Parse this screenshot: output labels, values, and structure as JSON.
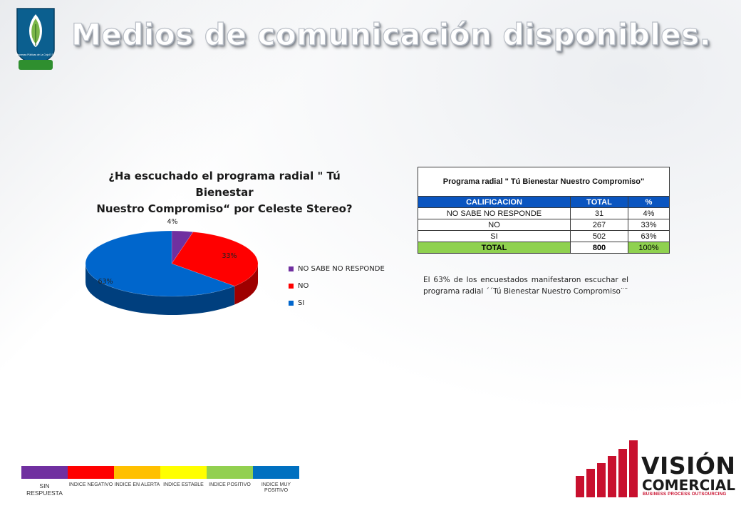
{
  "slide": {
    "title": "Medios de comunicación disponibles."
  },
  "chart_data": {
    "type": "pie",
    "title_line1": "¿Ha escuchado el programa radial \" Tú Bienestar",
    "title_line2": "Nuestro Compromiso“ por Celeste Stereo?",
    "categories": [
      "NO SABE NO RESPONDE",
      "NO",
      "SI"
    ],
    "values": [
      4,
      33,
      63
    ],
    "labels": [
      "4%",
      "33%",
      "63%"
    ],
    "colors": [
      "#7030a0",
      "#ff0000",
      "#0066cc"
    ],
    "legend_position": "right"
  },
  "table": {
    "title": "Programa radial \" Tú Bienestar Nuestro Compromiso\"",
    "headers": [
      "CALIFICACION",
      "TOTAL",
      "%"
    ],
    "rows": [
      [
        "NO SABE NO RESPONDE",
        "31",
        "4%"
      ],
      [
        "NO",
        "267",
        "33%"
      ],
      [
        "SI",
        "502",
        "63%"
      ]
    ],
    "total": [
      "TOTAL",
      "800",
      "100%"
    ]
  },
  "note": "El 63% de los encuestados manifestaron escuchar el programa radial ´´Tú Bienestar Nuestro Compromiso¨¨",
  "scale": [
    {
      "label": "SIN RESPUESTA",
      "color": "#7030a0"
    },
    {
      "label": "INDICE NEGATIVO",
      "color": "#ff0000"
    },
    {
      "label": "INDICE EN ALERTA",
      "color": "#ffc000"
    },
    {
      "label": "INDICE ESTABLE",
      "color": "#ffff00"
    },
    {
      "label": "INDICE POSITIVO",
      "color": "#92d050"
    },
    {
      "label": "INDICE MUY POSITIVO",
      "color": "#0070c0"
    }
  ],
  "brand": {
    "name": "VISIÓN",
    "sub": "COMERCIAL",
    "tagline": "BUSINESS PROCESS OUTSOURCING",
    "accent": "#c8102e"
  },
  "left_logo": {
    "text": "Empresas Públicas de La Ceja E.S.P"
  }
}
